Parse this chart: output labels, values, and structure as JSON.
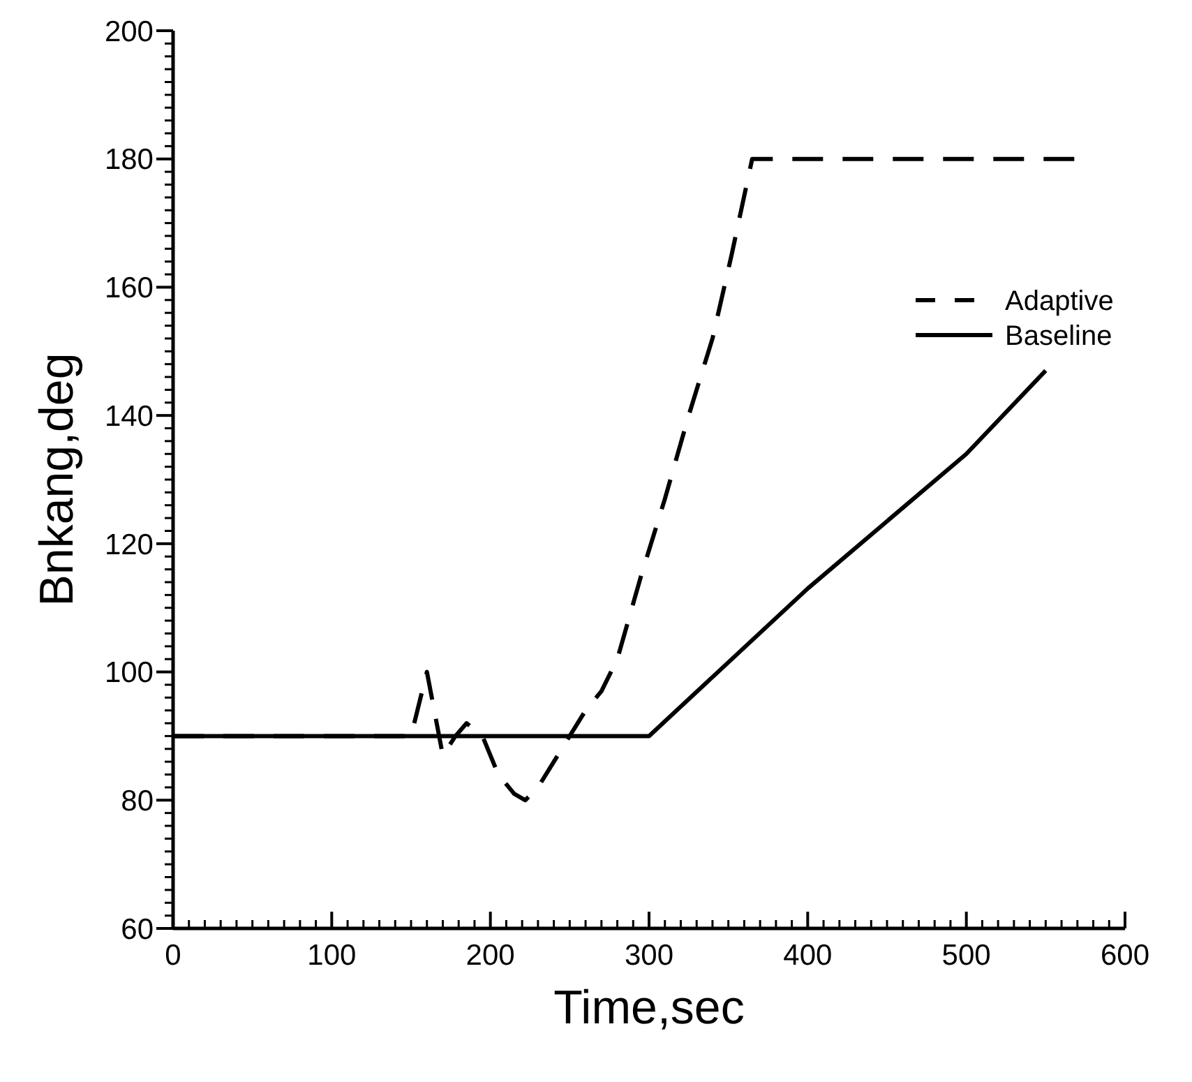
{
  "chart_data": {
    "type": "line",
    "xlabel": "Time,sec",
    "ylabel": "Bnkang,deg",
    "xlim": [
      0,
      600
    ],
    "ylim": [
      60,
      200
    ],
    "xticks": [
      0,
      100,
      200,
      300,
      400,
      500,
      600
    ],
    "yticks": [
      60,
      80,
      100,
      120,
      140,
      160,
      180,
      200
    ],
    "grid": false,
    "legend": "right",
    "marker": "none",
    "series": [
      {
        "name": "Adaptive",
        "color": "#000000",
        "line_style": "dashed",
        "x": [
          0,
          150,
          160,
          170,
          178,
          185,
          195,
          205,
          215,
          222,
          230,
          240,
          250,
          260,
          270,
          280,
          295,
          310,
          325,
          340,
          352,
          365,
          450,
          570
        ],
        "values": [
          90,
          90,
          100,
          87,
          90,
          92,
          90,
          84,
          81,
          80,
          82,
          86,
          90,
          94,
          97,
          102,
          115,
          127,
          140,
          152,
          165,
          180,
          180,
          180
        ]
      },
      {
        "name": "Baseline",
        "color": "#000000",
        "line_style": "solid",
        "x": [
          0,
          300,
          400,
          500,
          550
        ],
        "values": [
          90,
          90,
          113,
          134,
          147
        ]
      }
    ]
  }
}
